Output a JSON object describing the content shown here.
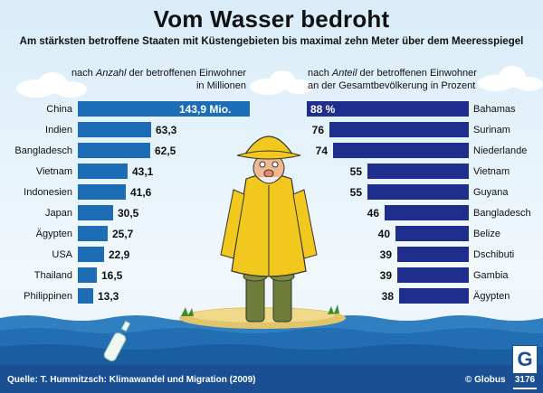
{
  "title": "Vom Wasser bedroht",
  "subtitle": "Am stärksten betroffene Staaten mit Küstengebieten bis maximal zehn Meter über dem Meeresspiegel",
  "chart_data": [
    {
      "type": "bar",
      "orientation": "horizontal",
      "header_parts": [
        "nach ",
        "Anzahl",
        " der betroffenen Einwohner",
        "in Millionen"
      ],
      "categories": [
        "China",
        "Indien",
        "Bangladesch",
        "Vietnam",
        "Indonesien",
        "Japan",
        "Ägypten",
        "USA",
        "Thailand",
        "Philippinen"
      ],
      "values": [
        143.9,
        63.3,
        62.5,
        43.1,
        41.6,
        30.5,
        25.7,
        22.9,
        16.5,
        13.3
      ],
      "value_labels": [
        "143,9 Mio.",
        "63,3",
        "62,5",
        "43,1",
        "41,6",
        "30,5",
        "25,7",
        "22,9",
        "16,5",
        "13,3"
      ],
      "unit": "Millionen",
      "color": "#1c6db6"
    },
    {
      "type": "bar",
      "orientation": "horizontal",
      "header_parts": [
        "nach ",
        "Anteil",
        " der betroffenen Einwohner",
        "an der Gesamtbevölkerung in Prozent"
      ],
      "categories": [
        "Bahamas",
        "Surinam",
        "Niederlande",
        "Vietnam",
        "Guyana",
        "Bangladesch",
        "Belize",
        "Dschibuti",
        "Gambia",
        "Ägypten"
      ],
      "values": [
        88,
        76,
        74,
        55,
        55,
        46,
        40,
        39,
        39,
        38
      ],
      "value_labels": [
        "88 %",
        "76",
        "74",
        "55",
        "55",
        "46",
        "40",
        "39",
        "39",
        "38"
      ],
      "unit": "Prozent",
      "color": "#1f2e8c"
    }
  ],
  "footer": {
    "source": "Quelle: T. Hummitzsch: Klimawandel und Migration (2009)",
    "brand": "© Globus",
    "badge_letter": "G",
    "badge_number": "3176"
  }
}
